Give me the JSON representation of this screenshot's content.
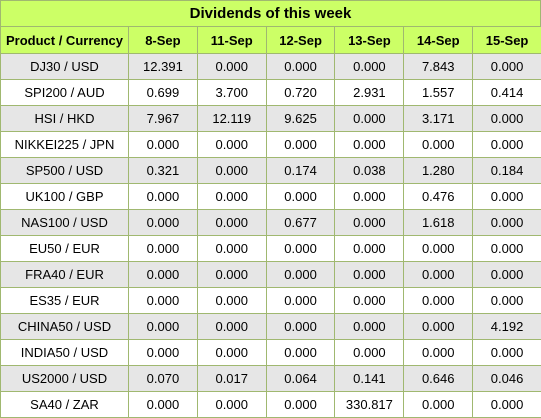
{
  "title": "Dividends of this week",
  "columns": [
    "Product / Currency",
    "8-Sep",
    "11-Sep",
    "12-Sep",
    "13-Sep",
    "14-Sep",
    "15-Sep"
  ],
  "rows": [
    [
      "DJ30 / USD",
      "12.391",
      "0.000",
      "0.000",
      "0.000",
      "7.843",
      "0.000"
    ],
    [
      "SPI200 / AUD",
      "0.699",
      "3.700",
      "0.720",
      "2.931",
      "1.557",
      "0.414"
    ],
    [
      "HSI / HKD",
      "7.967",
      "12.119",
      "9.625",
      "0.000",
      "3.171",
      "0.000"
    ],
    [
      "NIKKEI225 / JPN",
      "0.000",
      "0.000",
      "0.000",
      "0.000",
      "0.000",
      "0.000"
    ],
    [
      "SP500 / USD",
      "0.321",
      "0.000",
      "0.174",
      "0.038",
      "1.280",
      "0.184"
    ],
    [
      "UK100 / GBP",
      "0.000",
      "0.000",
      "0.000",
      "0.000",
      "0.476",
      "0.000"
    ],
    [
      "NAS100 / USD",
      "0.000",
      "0.000",
      "0.677",
      "0.000",
      "1.618",
      "0.000"
    ],
    [
      "EU50 / EUR",
      "0.000",
      "0.000",
      "0.000",
      "0.000",
      "0.000",
      "0.000"
    ],
    [
      "FRA40 / EUR",
      "0.000",
      "0.000",
      "0.000",
      "0.000",
      "0.000",
      "0.000"
    ],
    [
      "ES35 / EUR",
      "0.000",
      "0.000",
      "0.000",
      "0.000",
      "0.000",
      "0.000"
    ],
    [
      "CHINA50 / USD",
      "0.000",
      "0.000",
      "0.000",
      "0.000",
      "0.000",
      "4.192"
    ],
    [
      "INDIA50 / USD",
      "0.000",
      "0.000",
      "0.000",
      "0.000",
      "0.000",
      "0.000"
    ],
    [
      "US2000 / USD",
      "0.070",
      "0.017",
      "0.064",
      "0.141",
      "0.646",
      "0.046"
    ],
    [
      "SA40 / ZAR",
      "0.000",
      "0.000",
      "0.000",
      "330.817",
      "0.000",
      "0.000"
    ]
  ],
  "colors": {
    "header_bg": "#ccff66",
    "odd_row_bg": "#e6e6e6",
    "even_row_bg": "#ffffff",
    "border": "#a0b870"
  }
}
